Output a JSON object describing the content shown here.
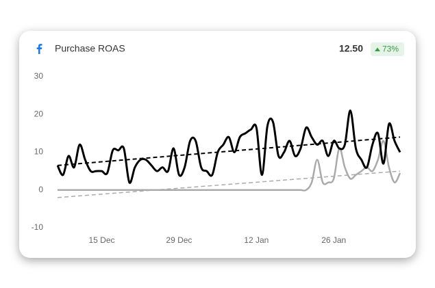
{
  "header": {
    "title": "Purchase ROAS",
    "value": "12.50",
    "change": "73%"
  },
  "chart_data": {
    "type": "line",
    "categories": [
      null,
      null,
      null,
      null,
      null,
      null,
      null,
      null,
      "15 Dec",
      null,
      null,
      null,
      null,
      null,
      null,
      null,
      null,
      null,
      null,
      null,
      null,
      null,
      "29 Dec",
      null,
      null,
      null,
      null,
      null,
      null,
      null,
      null,
      null,
      null,
      null,
      null,
      null,
      "12 Jan",
      null,
      null,
      null,
      null,
      null,
      null,
      null,
      null,
      null,
      null,
      null,
      null,
      null,
      "26 Jan",
      null,
      null,
      null,
      null,
      null,
      null,
      null,
      null,
      null,
      null,
      null,
      null
    ],
    "series": [
      {
        "color": "#000000",
        "trend": [
          6.5,
          14
        ],
        "values": [
          6.5,
          4,
          9,
          6,
          12,
          8,
          5,
          5,
          5,
          4.5,
          10.5,
          10.5,
          11,
          2,
          6,
          8,
          8,
          6.5,
          5,
          6,
          5,
          11,
          4,
          6,
          13,
          13,
          6,
          5,
          4,
          10,
          12,
          14,
          10,
          14,
          15,
          16,
          16.5,
          4,
          17,
          18,
          9,
          10,
          13,
          9,
          11,
          16.5,
          14,
          12,
          13,
          9,
          13,
          11,
          12,
          21,
          11,
          8,
          6,
          12,
          15,
          7,
          17.5,
          13,
          10
        ]
      },
      {
        "color": "#aaaaaa",
        "trend": [
          -2,
          5
        ],
        "values": [
          0,
          0,
          0,
          0,
          0,
          0,
          0,
          0,
          0,
          0,
          0,
          0,
          0,
          0,
          0,
          0,
          0,
          0,
          0,
          0,
          0,
          0,
          0,
          0,
          0,
          0,
          0,
          0,
          0,
          0,
          0,
          0,
          0,
          0,
          0,
          0,
          0,
          0,
          0,
          0,
          0,
          0,
          0,
          0,
          0,
          0,
          2,
          8,
          2,
          2,
          3,
          11,
          6,
          3,
          4,
          5,
          6,
          5,
          8,
          13,
          6,
          2,
          4.5
        ]
      }
    ],
    "ylim": [
      -10,
      30
    ],
    "yticks": [
      -10,
      0,
      10,
      20,
      30
    ],
    "grid": false
  }
}
